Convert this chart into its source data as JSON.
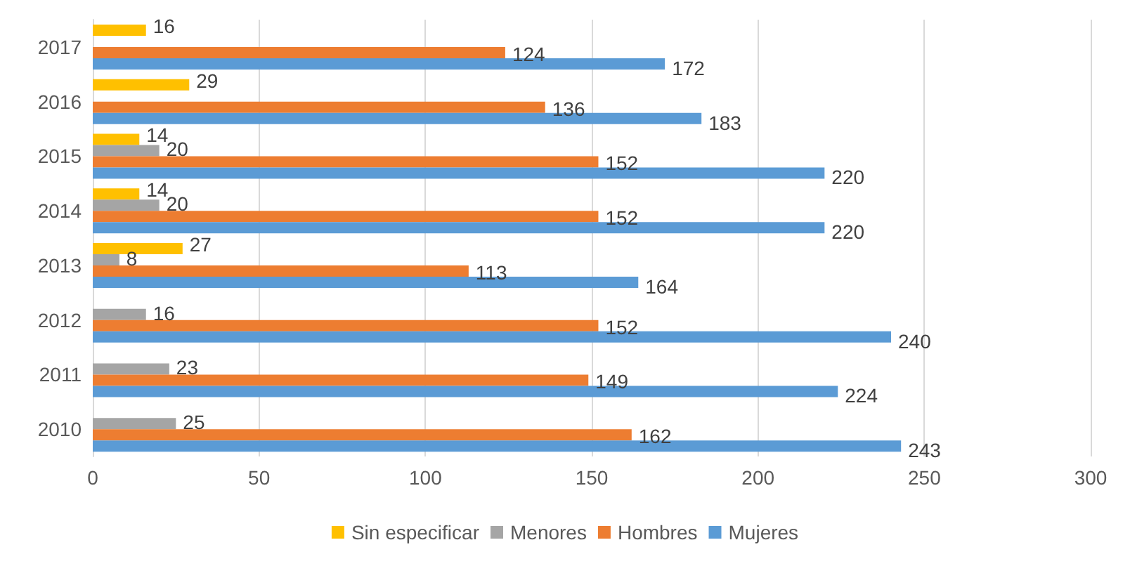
{
  "chart_data": {
    "type": "bar",
    "orientation": "horizontal",
    "categories": [
      "2017",
      "2016",
      "2015",
      "2014",
      "2013",
      "2012",
      "2011",
      "2010"
    ],
    "series": [
      {
        "name": "Sin especificar",
        "color": "#ffc000",
        "values": [
          16,
          29,
          14,
          14,
          27,
          null,
          null,
          null
        ]
      },
      {
        "name": "Menores",
        "color": "#a5a5a5",
        "values": [
          null,
          null,
          20,
          20,
          8,
          16,
          23,
          25
        ]
      },
      {
        "name": "Hombres",
        "color": "#ed7d31",
        "values": [
          124,
          136,
          152,
          152,
          113,
          152,
          149,
          162
        ]
      },
      {
        "name": "Mujeres",
        "color": "#5b9bd5",
        "values": [
          172,
          183,
          220,
          220,
          164,
          240,
          224,
          243
        ]
      }
    ],
    "xlim": [
      0,
      300
    ],
    "xticks": [
      0,
      50,
      100,
      150,
      200,
      250,
      300
    ],
    "grid": "x",
    "legend": "bottom",
    "data_labels": true
  }
}
